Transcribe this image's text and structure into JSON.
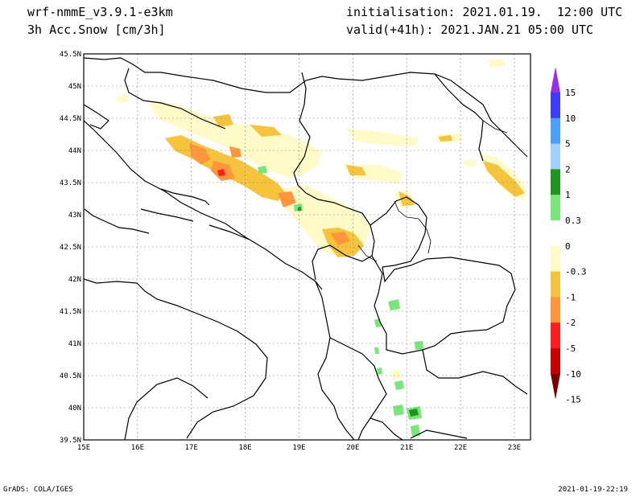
{
  "header": {
    "model": "wrf-nmmE_v3.9.1-e3km",
    "field": "3h Acc.Snow [cm/3h]",
    "init": "initialisation: 2021.01.19.  12:00 UTC",
    "valid": "valid(+41h): 2021.JAN.21 05:00 UTC"
  },
  "footer": {
    "left": "GrADS: COLA/IGES",
    "right": "2021-01-19-22:19"
  },
  "axes": {
    "lon_labels": [
      "15E",
      "16E",
      "17E",
      "18E",
      "19E",
      "20E",
      "21E",
      "22E",
      "23E"
    ],
    "lat_labels": [
      "45.5N",
      "45N",
      "44.5N",
      "44N",
      "43.5N",
      "43N",
      "42.5N",
      "42N",
      "41.5N",
      "41N",
      "40.5N",
      "40N",
      "39.5N"
    ],
    "lon_range": [
      15,
      23.3
    ],
    "lat_range": [
      39.5,
      45.5
    ],
    "grid": "dotted"
  },
  "colorbar": {
    "labels": [
      "15",
      "10",
      "5",
      "2",
      "1",
      "0.3",
      "0",
      "-0.3",
      "-1",
      "-2",
      "-5",
      "-10",
      "-15"
    ],
    "colors": [
      "#9a2ee6",
      "#3c3cff",
      "#4aa0ff",
      "#a0d2ff",
      "#1e961e",
      "#78e678",
      "#ffffff",
      "#fffac8",
      "#f5c43c",
      "#ff963c",
      "#ff1e1e",
      "#c80000",
      "#7a0000"
    ]
  },
  "map_colors": {
    "light": "#fffac8",
    "mid": "#f5c43c",
    "orange": "#ff963c",
    "red": "#ff1e1e",
    "green": "#78e678",
    "dgreen": "#1e961e"
  }
}
